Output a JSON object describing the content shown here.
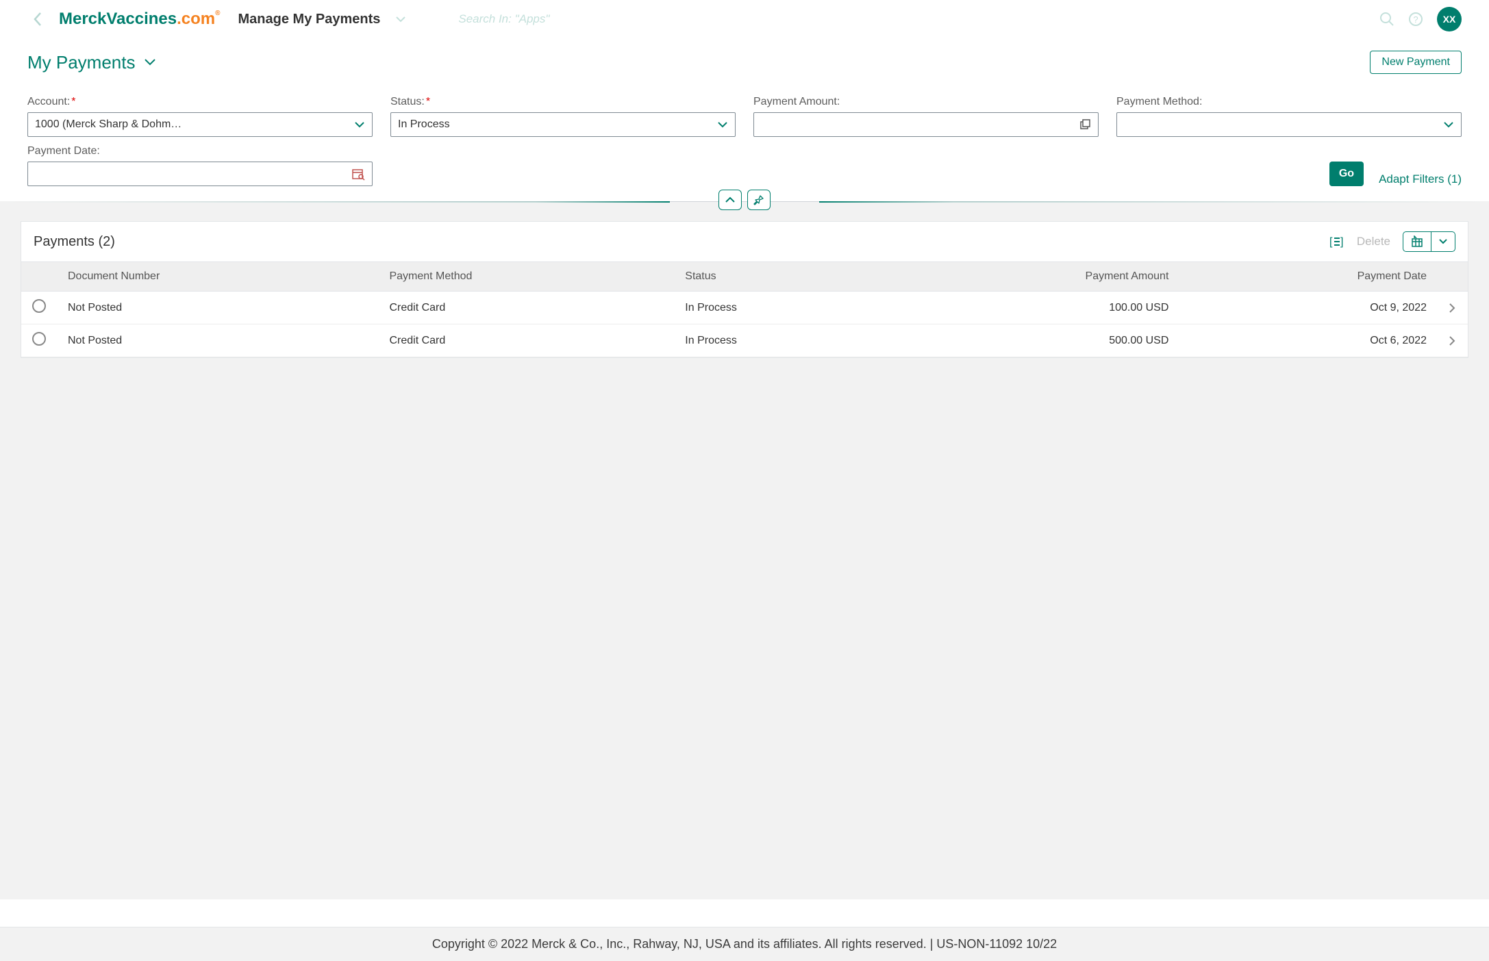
{
  "header": {
    "brand_part1": "Merck",
    "brand_part2": "Vaccines",
    "brand_part3": ".com",
    "app_title": "Manage My Payments",
    "search_placeholder": "Search In: \"Apps\"",
    "avatar_initials": "XX"
  },
  "page": {
    "title": "My Payments",
    "new_payment_label": "New Payment"
  },
  "filters": {
    "account": {
      "label": "Account:",
      "value": "1000 (Merck Sharp & Dohm…"
    },
    "status": {
      "label": "Status:",
      "value": "In Process"
    },
    "payment_amount": {
      "label": "Payment Amount:",
      "value": ""
    },
    "payment_method": {
      "label": "Payment Method:",
      "value": ""
    },
    "payment_date": {
      "label": "Payment Date:",
      "value": ""
    },
    "go_label": "Go",
    "adapt_filters_label": "Adapt Filters (1)"
  },
  "table": {
    "title": "Payments (2)",
    "delete_label": "Delete",
    "columns": {
      "doc_number": "Document Number",
      "payment_method": "Payment Method",
      "status": "Status",
      "payment_amount": "Payment Amount",
      "payment_date": "Payment Date"
    },
    "rows": [
      {
        "doc_number": "Not Posted",
        "payment_method": "Credit Card",
        "status": "In Process",
        "payment_amount": "100.00 USD",
        "payment_date": "Oct 9, 2022"
      },
      {
        "doc_number": "Not Posted",
        "payment_method": "Credit Card",
        "status": "In Process",
        "payment_amount": "500.00 USD",
        "payment_date": "Oct 6, 2022"
      }
    ]
  },
  "footer": {
    "text": "Copyright © 2022 Merck & Co., Inc., Rahway, NJ, USA and its affiliates. All rights reserved. | US-NON-11092 10/22"
  },
  "colors": {
    "brand_teal": "#007e6d",
    "brand_orange": "#f58220",
    "panel_grey": "#f2f2f2",
    "border_grey": "#e2e5e8",
    "muted_teal": "#c4e0db"
  }
}
